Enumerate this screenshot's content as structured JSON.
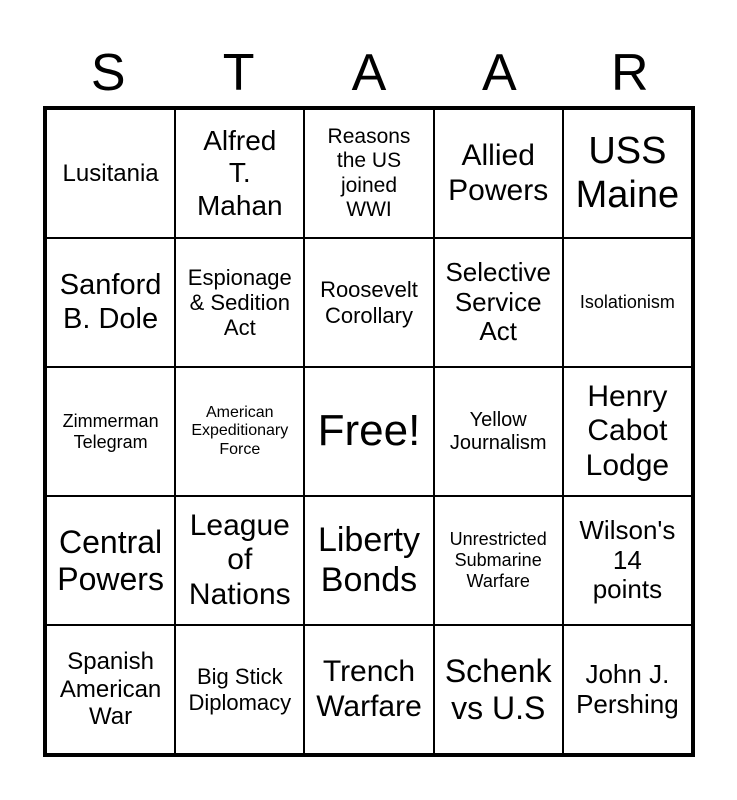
{
  "header": [
    "S",
    "T",
    "A",
    "A",
    "R"
  ],
  "cells": [
    "Lusitania",
    "Alfred\nT.\nMahan",
    "Reasons\nthe US\njoined\nWWI",
    "Allied\nPowers",
    "USS\nMaine",
    "Sanford\nB. Dole",
    "Espionage\n& Sedition\nAct",
    "Roosevelt\nCorollary",
    "Selective\nService\nAct",
    "Isolationism",
    "Zimmerman\nTelegram",
    "American\nExpeditionary\nForce",
    "Free!",
    "Yellow\nJournalism",
    "Henry\nCabot\nLodge",
    "Central\nPowers",
    "League\nof\nNations",
    "Liberty\nBonds",
    "Unrestricted\nSubmarine\nWarfare",
    "Wilson's\n14\npoints",
    "Spanish\nAmerican\nWar",
    "Big Stick\nDiplomacy",
    "Trench\nWarfare",
    "Schenk\nvs U.S",
    "John J.\nPershing"
  ]
}
